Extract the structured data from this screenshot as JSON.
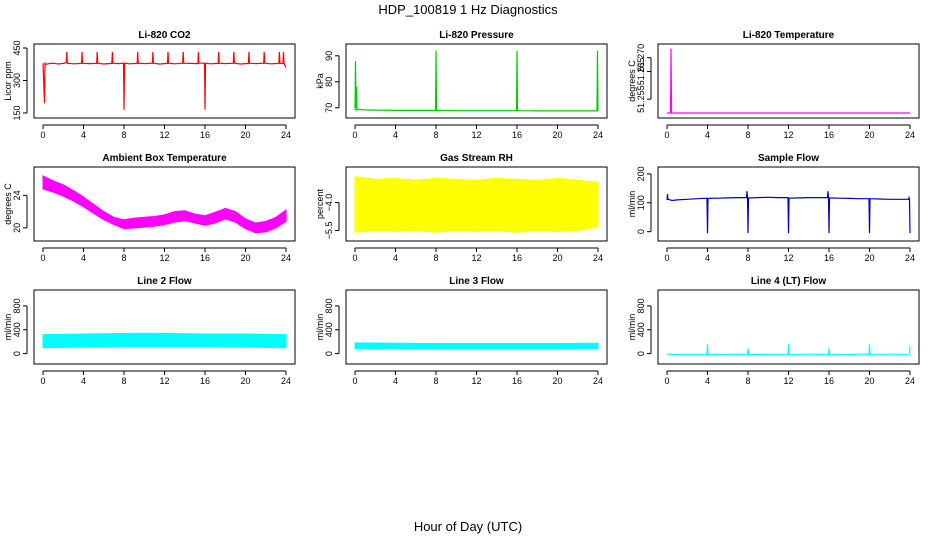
{
  "figure": {
    "title": "HDP_100819  1 Hz Diagnostics",
    "xlabel": "Hour of Day (UTC)"
  },
  "chart_data": [
    {
      "type": "line",
      "title": "Li-820 CO2",
      "ylabel": "Licor ppm",
      "color": "#ff0000",
      "xlim": [
        0,
        24
      ],
      "ylim": [
        150,
        450
      ],
      "xticks": [
        0,
        4,
        8,
        12,
        16,
        20,
        24
      ],
      "yticks": [
        150,
        300,
        450
      ],
      "series": [
        {
          "name": "Li-820 CO2",
          "x": [
            0,
            0.15,
            0.2,
            0.3,
            0.6,
            1.0,
            1.5,
            2.0,
            2.3,
            2.35,
            2.4,
            3.0,
            3.8,
            3.85,
            3.9,
            4.5,
            5.3,
            5.35,
            5.4,
            6.0,
            6.8,
            6.85,
            6.9,
            7.5,
            7.95,
            8.0,
            8.05,
            8.5,
            9.3,
            9.35,
            9.4,
            10.0,
            10.8,
            10.85,
            10.9,
            11.5,
            12.3,
            12.35,
            12.4,
            13.0,
            13.8,
            13.85,
            13.9,
            14.5,
            15.3,
            15.35,
            15.4,
            15.95,
            16.0,
            16.05,
            16.5,
            17.3,
            17.35,
            17.4,
            18.0,
            18.8,
            18.85,
            18.9,
            19.5,
            20.3,
            20.35,
            20.4,
            21.0,
            21.8,
            21.85,
            21.9,
            22.5,
            23.3,
            23.35,
            23.4,
            23.7,
            23.75,
            23.8,
            24
          ],
          "y": [
            380,
            195,
            380,
            375,
            378,
            380,
            376,
            379,
            382,
            432,
            380,
            377,
            379,
            432,
            380,
            378,
            379,
            432,
            380,
            376,
            379,
            432,
            380,
            378,
            380,
            165,
            380,
            377,
            379,
            432,
            380,
            378,
            380,
            432,
            380,
            376,
            379,
            432,
            380,
            377,
            380,
            432,
            380,
            379,
            378,
            432,
            380,
            380,
            165,
            380,
            377,
            379,
            432,
            380,
            378,
            380,
            432,
            380,
            376,
            379,
            432,
            380,
            378,
            380,
            432,
            380,
            377,
            379,
            432,
            380,
            378,
            432,
            380,
            360
          ]
        }
      ]
    },
    {
      "type": "line",
      "title": "Li-820 Pressure",
      "ylabel": "kPa",
      "color": "#00cd00",
      "xlim": [
        0,
        24
      ],
      "ylim": [
        68,
        93
      ],
      "xticks": [
        0,
        4,
        8,
        12,
        16,
        20,
        24
      ],
      "yticks": [
        70,
        80,
        90
      ],
      "series": [
        {
          "name": "Li-820 Pressure",
          "x": [
            0,
            0.05,
            0.1,
            0.15,
            0.2,
            0.3,
            0.5,
            1,
            2,
            4,
            6,
            7.95,
            8.0,
            8.05,
            10,
            12,
            14,
            15.95,
            16.0,
            16.05,
            18,
            20,
            22,
            23.9,
            23.95,
            24
          ],
          "y": [
            69,
            88,
            70,
            78,
            69,
            69.5,
            69.3,
            69.2,
            69.1,
            69.0,
            69.0,
            69.0,
            92,
            69.0,
            68.9,
            68.9,
            68.9,
            68.9,
            92,
            68.9,
            68.8,
            68.8,
            68.8,
            68.8,
            92,
            68.8
          ]
        }
      ]
    },
    {
      "type": "line",
      "title": "Li-820 Temperature",
      "ylabel": "degrees C",
      "color": "#ff00ff",
      "xlim": [
        0,
        24
      ],
      "ylim": [
        51.25,
        51.2735
      ],
      "xticks": [
        0,
        4,
        8,
        12,
        16,
        20,
        24
      ],
      "yticks": [
        51.255,
        51.265,
        51.27
      ],
      "ytick_labels": [
        "51.255",
        "51.265",
        "51.270"
      ],
      "series": [
        {
          "name": "Li-820 Temperature",
          "x": [
            0,
            0.35,
            0.4,
            0.45,
            0.5,
            1,
            6,
            12,
            18,
            24
          ],
          "y": [
            51.25,
            51.25,
            51.2733,
            51.25,
            51.25,
            51.25,
            51.25,
            51.25,
            51.25,
            51.25
          ]
        }
      ]
    },
    {
      "type": "area",
      "title": "Ambient Box Temperature",
      "ylabel": "degrees C",
      "color": "#ff00ff",
      "xlim": [
        0,
        24
      ],
      "ylim": [
        19,
        27
      ],
      "xticks": [
        0,
        4,
        8,
        12,
        16,
        20,
        24
      ],
      "yticks": [
        20,
        24
      ],
      "series": [
        {
          "name": "upper",
          "x": [
            0,
            1,
            2,
            3,
            4,
            5,
            6,
            7,
            8,
            9,
            10,
            11,
            12,
            13,
            14,
            15,
            16,
            17,
            18,
            19,
            20,
            21,
            22,
            23,
            24
          ],
          "y": [
            26.4,
            25.8,
            25.3,
            24.6,
            23.8,
            22.9,
            22.0,
            21.3,
            21.0,
            21.2,
            21.3,
            21.4,
            21.6,
            22.0,
            22.1,
            21.7,
            21.5,
            21.9,
            22.4,
            22.0,
            21.1,
            20.6,
            20.8,
            21.3,
            22.2
          ]
        },
        {
          "name": "lower",
          "x": [
            0,
            1,
            2,
            3,
            4,
            5,
            6,
            7,
            8,
            9,
            10,
            11,
            12,
            13,
            14,
            15,
            16,
            17,
            18,
            19,
            20,
            21,
            22,
            23,
            24
          ],
          "y": [
            24.8,
            24.4,
            23.9,
            23.3,
            22.6,
            21.8,
            21.0,
            20.4,
            19.9,
            20.0,
            20.1,
            20.2,
            20.4,
            20.7,
            20.9,
            20.6,
            20.3,
            20.6,
            21.1,
            20.7,
            19.9,
            19.4,
            19.5,
            20.0,
            20.8
          ]
        }
      ]
    },
    {
      "type": "area",
      "title": "Gas Stream RH",
      "ylabel": "percent",
      "color": "#ffff00",
      "xlim": [
        0,
        24
      ],
      "ylim": [
        -5.8,
        -2.3
      ],
      "xticks": [
        0,
        4,
        8,
        12,
        16,
        20,
        24
      ],
      "yticks": [
        -5.5,
        -4.0
      ],
      "ytick_labels": [
        "−5.5",
        "−4.0"
      ],
      "series": [
        {
          "name": "upper",
          "x": [
            0,
            2,
            4,
            6,
            8,
            10,
            12,
            14,
            16,
            18,
            20,
            22,
            24
          ],
          "y": [
            -2.6,
            -2.75,
            -2.7,
            -2.8,
            -2.7,
            -2.75,
            -2.8,
            -2.7,
            -2.75,
            -2.8,
            -2.7,
            -2.8,
            -2.9
          ]
        },
        {
          "name": "lower",
          "x": [
            0,
            2,
            4,
            6,
            8,
            10,
            12,
            14,
            16,
            18,
            20,
            22,
            24
          ],
          "y": [
            -5.6,
            -5.5,
            -5.55,
            -5.5,
            -5.6,
            -5.5,
            -5.55,
            -5.5,
            -5.6,
            -5.5,
            -5.55,
            -5.5,
            -5.3
          ]
        }
      ]
    },
    {
      "type": "line",
      "title": "Sample Flow",
      "ylabel": "ml/min",
      "color": "#0000cd",
      "xlim": [
        0,
        24
      ],
      "ylim": [
        -15,
        210
      ],
      "xticks": [
        0,
        4,
        8,
        12,
        16,
        20,
        24
      ],
      "yticks": [
        0,
        100,
        200
      ],
      "series": [
        {
          "name": "Sample Flow",
          "x": [
            0,
            0.05,
            0.1,
            0.5,
            1,
            2,
            3,
            3.95,
            4.0,
            4.05,
            5,
            6,
            7,
            7.85,
            7.9,
            7.95,
            8.0,
            8.05,
            9,
            10,
            11,
            11.95,
            12.0,
            12.05,
            13,
            14,
            15,
            15.85,
            15.9,
            15.95,
            16.0,
            16.05,
            17,
            18,
            19,
            19.95,
            20.0,
            20.05,
            21,
            22,
            23,
            23.85,
            23.9,
            23.95,
            24
          ],
          "y": [
            110,
            130,
            112,
            108,
            110,
            112,
            114,
            116,
            -5,
            115,
            116,
            117,
            118,
            118,
            140,
            118,
            -5,
            117,
            118,
            119,
            118,
            118,
            -5,
            116,
            117,
            118,
            118,
            118,
            140,
            118,
            -5,
            117,
            116,
            115,
            114,
            114,
            -5,
            114,
            113,
            112,
            112,
            112,
            118,
            112,
            -5
          ]
        }
      ]
    },
    {
      "type": "area",
      "title": "Line 2 Flow",
      "ylabel": "ml/min",
      "color": "#00ffff",
      "xlim": [
        0,
        24
      ],
      "ylim": [
        -90,
        1000
      ],
      "xticks": [
        0,
        4,
        8,
        12,
        16,
        20,
        24
      ],
      "yticks": [
        0,
        400,
        800
      ],
      "series": [
        {
          "name": "upper",
          "x": [
            0,
            4,
            8,
            12,
            16,
            20,
            24
          ],
          "y": [
            320,
            330,
            340,
            340,
            330,
            330,
            320
          ]
        },
        {
          "name": "lower",
          "x": [
            0,
            4,
            8,
            12,
            16,
            20,
            24
          ],
          "y": [
            100,
            110,
            120,
            120,
            120,
            110,
            100
          ]
        }
      ]
    },
    {
      "type": "area",
      "title": "Line 3 Flow",
      "ylabel": "ml/min",
      "color": "#00ffff",
      "xlim": [
        0,
        24
      ],
      "ylim": [
        -90,
        1000
      ],
      "xticks": [
        0,
        4,
        8,
        12,
        16,
        20,
        24
      ],
      "yticks": [
        0,
        400,
        800
      ],
      "series": [
        {
          "name": "upper",
          "x": [
            0,
            4,
            8,
            12,
            16,
            20,
            24
          ],
          "y": [
            180,
            175,
            170,
            170,
            170,
            170,
            175
          ]
        },
        {
          "name": "lower",
          "x": [
            0,
            4,
            8,
            12,
            16,
            20,
            24
          ],
          "y": [
            80,
            80,
            80,
            80,
            80,
            80,
            80
          ]
        }
      ]
    },
    {
      "type": "line",
      "title": "Line 4 (LT) Flow",
      "ylabel": "ml/min",
      "color": "#00ffff",
      "xlim": [
        0,
        24
      ],
      "ylim": [
        -90,
        1000
      ],
      "xticks": [
        0,
        4,
        8,
        12,
        16,
        20,
        24
      ],
      "yticks": [
        0,
        400,
        800
      ],
      "series": [
        {
          "name": "Line 4 (LT) Flow",
          "x": [
            0,
            1,
            2,
            3,
            3.95,
            4.0,
            4.05,
            5,
            6,
            7,
            7.95,
            8.0,
            8.05,
            9,
            10,
            11,
            11.95,
            12.0,
            12.05,
            13,
            14,
            15,
            15.95,
            16.0,
            16.05,
            17,
            18,
            19,
            19.95,
            20.0,
            20.05,
            21,
            22,
            23,
            23.95,
            24.0
          ],
          "y": [
            -10,
            -15,
            -10,
            -12,
            -10,
            160,
            -10,
            -15,
            -10,
            -12,
            -10,
            90,
            -10,
            -15,
            -10,
            -12,
            -10,
            160,
            -10,
            -12,
            -10,
            -12,
            -10,
            90,
            -10,
            -12,
            -15,
            -10,
            -10,
            160,
            -10,
            -12,
            -10,
            -12,
            -10,
            120
          ]
        }
      ]
    }
  ]
}
